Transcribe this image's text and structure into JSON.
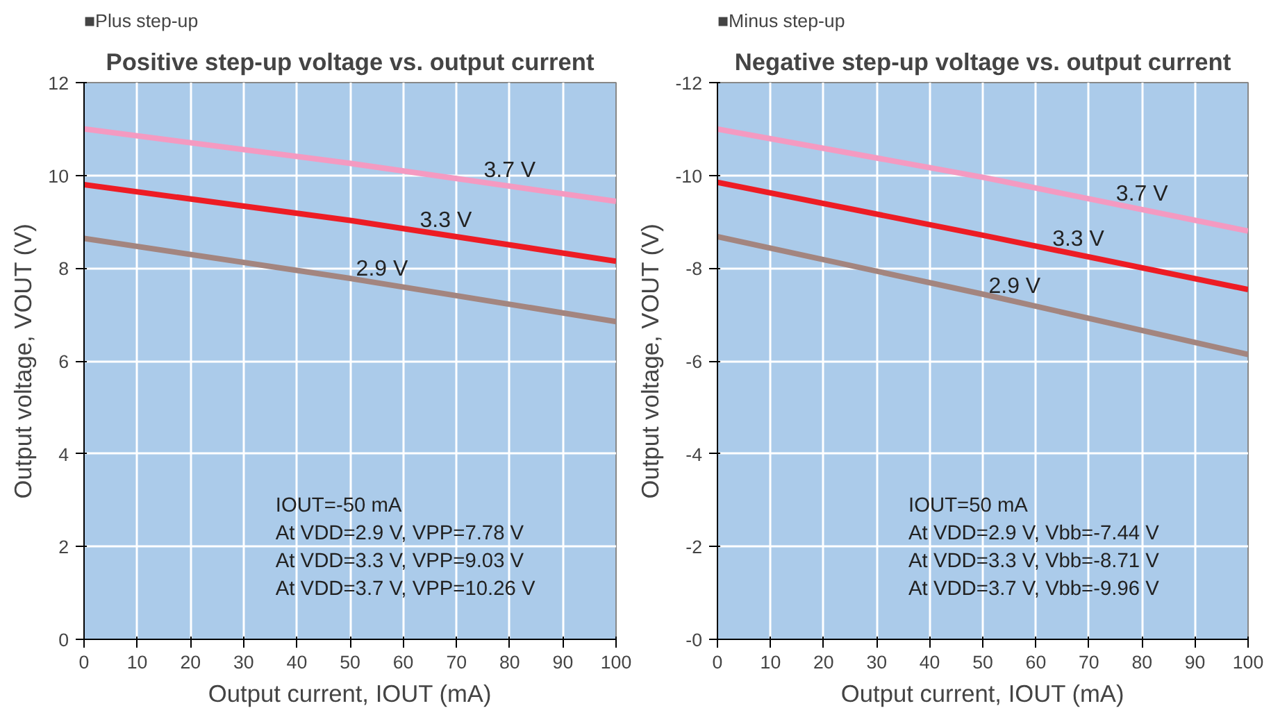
{
  "chart_data": [
    {
      "type": "line",
      "subtitle": "■Plus step-up",
      "title": "Positive step-up voltage vs. output current",
      "xlabel": "Output current, IOUT (mA)",
      "ylabel": "Output voltage, VOUT (V)",
      "x": [
        0,
        50,
        100
      ],
      "series": [
        {
          "name": "3.7 V",
          "color": "#f49ac1",
          "values": [
            11.0,
            10.26,
            9.44
          ]
        },
        {
          "name": "3.3 V",
          "color": "#ed1c24",
          "values": [
            9.8,
            9.03,
            8.15
          ]
        },
        {
          "name": "2.9 V",
          "color": "#a3857f",
          "values": [
            8.64,
            7.78,
            6.85
          ]
        }
      ],
      "xlim": [
        0,
        100
      ],
      "xticks": [
        0,
        10,
        20,
        30,
        40,
        50,
        60,
        70,
        80,
        90,
        100
      ],
      "ylim": [
        0,
        12
      ],
      "yticks": [
        0,
        2,
        4,
        6,
        8,
        10,
        12
      ],
      "grid": true,
      "marker": "none",
      "line_style": "solid",
      "annotations": [
        "IOUT=-50 mA",
        "At VDD=2.9 V, VPP=7.78 V",
        "At VDD=3.3 V, VPP=9.03 V",
        "At VDD=3.7 V, VPP=10.26 V"
      ]
    },
    {
      "type": "line",
      "subtitle": "■Minus step-up",
      "title": "Negative step-up voltage vs. output current",
      "xlabel": "Output current, IOUT (mA)",
      "ylabel": "Output voltage, VOUT (V)",
      "x": [
        0,
        50,
        100
      ],
      "series": [
        {
          "name": "3.7 V",
          "color": "#f49ac1",
          "values": [
            -11.0,
            -9.96,
            -8.8
          ]
        },
        {
          "name": "3.3 V",
          "color": "#ed1c24",
          "values": [
            -9.85,
            -8.71,
            -7.54
          ]
        },
        {
          "name": "2.9 V",
          "color": "#a3857f",
          "values": [
            -8.68,
            -7.44,
            -6.14
          ]
        }
      ],
      "xlim": [
        0,
        100
      ],
      "xticks": [
        0,
        10,
        20,
        30,
        40,
        50,
        60,
        70,
        80,
        90,
        100
      ],
      "ylim": [
        0,
        -12
      ],
      "yticks": [
        {
          "value": 0,
          "label": "-0"
        },
        -2,
        -4,
        -6,
        -8,
        -10,
        -12
      ],
      "grid": true,
      "marker": "none",
      "line_style": "solid",
      "annotations": [
        "IOUT=50 mA",
        "At VDD=2.9 V, Vbb=-7.44 V",
        "At VDD=3.3 V, Vbb=-8.71 V",
        "At VDD=3.7 V, Vbb=-9.96 V"
      ]
    }
  ]
}
